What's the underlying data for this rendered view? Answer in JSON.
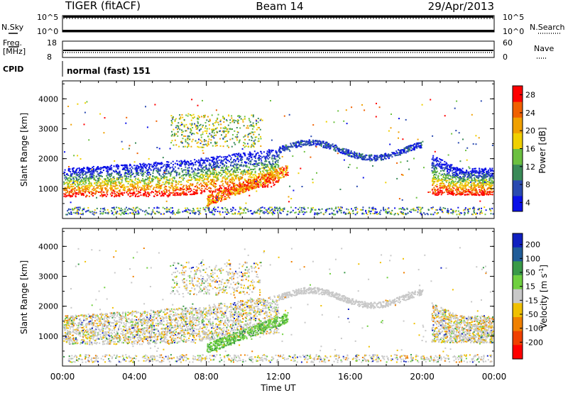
{
  "header": {
    "radar": "TIGER (fitACF)",
    "beam": "Beam 14",
    "date": "29/Apr/2013"
  },
  "params": {
    "nsky_label": "N.Sky",
    "nsky_ticks": [
      "10^5",
      "10^0"
    ],
    "nsearch_label": "N.Search",
    "nsearch_ticks": [
      "10^5",
      "10^0"
    ],
    "freq_label_1": "Freq.",
    "freq_label_2": "[MHz]",
    "freq_ticks": [
      "18",
      "8"
    ],
    "nave_label": "Nave",
    "nave_ticks": [
      "60",
      "0"
    ],
    "cpid_label": "CPID",
    "cpid_text": "normal (fast) 151"
  },
  "chart_data": [
    {
      "type": "heatmap",
      "name": "power",
      "ylabel": "Slant Range [km]",
      "yticks": [
        1000,
        2000,
        3000,
        4000
      ],
      "ylim": [
        0,
        4600
      ],
      "xlabel": "Time UT",
      "xticks": [
        "00:00",
        "04:00",
        "08:00",
        "12:00",
        "16:00",
        "20:00",
        "00:00"
      ],
      "colorbar": {
        "label": "Power [dB]",
        "ticks": [
          "28",
          "24",
          "20",
          "16",
          "12",
          "8",
          "4"
        ],
        "colors": [
          "#0a10e8",
          "#2a4ab0",
          "#3a8a58",
          "#6cc040",
          "#f0d000",
          "#f0a000",
          "#f06000",
          "#ff0000"
        ]
      },
      "features": [
        {
          "desc": "band",
          "start_hour": 0,
          "end_hour": 12,
          "range_km": [
            900,
            1800
          ]
        },
        {
          "desc": "band",
          "start_hour": 20.5,
          "end_hour": 24,
          "range_km": [
            900,
            1600
          ]
        }
      ]
    },
    {
      "type": "heatmap",
      "name": "velocity",
      "ylabel": "Slant Range [km]",
      "yticks": [
        1000,
        2000,
        3000,
        4000
      ],
      "ylim": [
        0,
        4600
      ],
      "xlabel": "Time UT",
      "xticks": [
        "00:00",
        "04:00",
        "08:00",
        "12:00",
        "16:00",
        "20:00",
        "00:00"
      ],
      "colorbar": {
        "label_main": "Velocity [m s",
        "label_sup": "-1",
        "label_end": "]",
        "ticks": [
          "200",
          "100",
          "50",
          "15",
          "-15",
          "-50",
          "-100",
          "-200"
        ],
        "colors": [
          "#1020c0",
          "#205c98",
          "#3a9a48",
          "#70d040",
          "#c8c8c8",
          "#f0c000",
          "#f08000",
          "#f04000",
          "#ff0000"
        ]
      }
    }
  ]
}
